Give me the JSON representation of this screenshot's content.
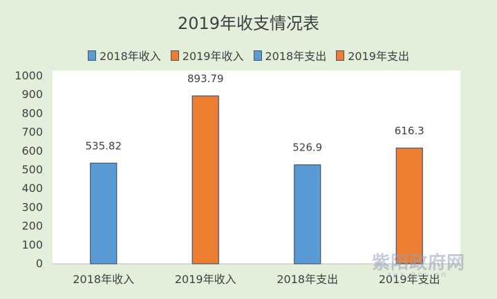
{
  "chart_data": {
    "type": "bar",
    "title": "2019年收支情况表",
    "categories": [
      "2018年收入",
      "2019年收入",
      "2018年支出",
      "2019年支出"
    ],
    "values": [
      535.82,
      893.79,
      526.9,
      616.3
    ],
    "value_labels": [
      "535.82",
      "893.79",
      "526.9",
      "616.3"
    ],
    "bar_colors": [
      "#5b9bd5",
      "#ed7d31",
      "#5b9bd5",
      "#ed7d31"
    ],
    "legend": [
      {
        "name": "2018年收入",
        "color": "#5b9bd5"
      },
      {
        "name": "2019年收入",
        "color": "#ed7d31"
      },
      {
        "name": "2018年支出",
        "color": "#5b9bd5"
      },
      {
        "name": "2019年支出",
        "color": "#ed7d31"
      }
    ],
    "legend_position": "top",
    "ylim": [
      0,
      1000
    ],
    "yticks": [
      "0",
      "100",
      "200",
      "300",
      "400",
      "500",
      "600",
      "700",
      "800",
      "900",
      "1000"
    ],
    "grid": false
  },
  "watermark": {
    "text": "紫阳政府网",
    "subtext": "zyx.gov.cn"
  }
}
